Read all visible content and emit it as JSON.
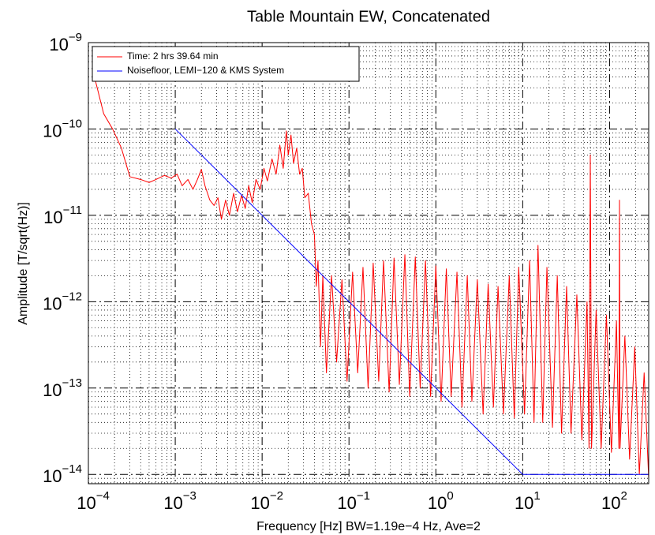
{
  "chart_data": {
    "type": "line",
    "title": "Table Mountain EW, Concatenated",
    "x_label": "Frequency [Hz]  BW=1.19e−4 Hz, Ave=2",
    "y_label": "Amplitude [T/sqrt(Hz)]",
    "x_log": true,
    "y_log": true,
    "grid": true,
    "minor_grid": true,
    "legend": "upper left",
    "xlim": [
      0.0001,
      282
    ],
    "ylim": [
      7.8e-15,
      1e-09
    ],
    "xticks": [
      {
        "value": 0.0001,
        "label": "10^−4"
      },
      {
        "value": 0.001,
        "label": "10^−3"
      },
      {
        "value": 0.01,
        "label": "10^−2"
      },
      {
        "value": 0.1,
        "label": "10^−1"
      },
      {
        "value": 1,
        "label": "10^0"
      },
      {
        "value": 10,
        "label": "10^1"
      },
      {
        "value": 100,
        "label": "10^2"
      }
    ],
    "yticks": [
      {
        "value": 1e-14,
        "label": "10^−14"
      },
      {
        "value": 1e-13,
        "label": "10^−13"
      },
      {
        "value": 1e-12,
        "label": "10^−12"
      },
      {
        "value": 1e-11,
        "label": "10^−11"
      },
      {
        "value": 1e-10,
        "label": "10^−10"
      },
      {
        "value": 1e-09,
        "label": "10^−9"
      }
    ],
    "xminorticks": [
      0.0002,
      0.0003,
      0.0004,
      0.0005,
      0.0006,
      0.0007,
      0.0008,
      0.0009,
      0.002,
      0.003,
      0.004,
      0.005,
      0.006,
      0.007,
      0.008,
      0.009,
      0.02,
      0.03,
      0.04,
      0.05,
      0.06,
      0.07,
      0.08,
      0.09,
      0.2,
      0.3,
      0.4,
      0.5,
      0.6,
      0.7,
      0.8,
      0.9,
      2,
      3,
      4,
      5,
      6,
      7,
      8,
      9,
      20,
      30,
      40,
      50,
      60,
      70,
      80,
      90,
      200
    ],
    "yminorticks": [
      8e-15,
      9e-15,
      2e-14,
      3e-14,
      4e-14,
      5e-14,
      6e-14,
      7e-14,
      8e-14,
      9e-14,
      2e-13,
      3e-13,
      4e-13,
      5e-13,
      6e-13,
      7e-13,
      8e-13,
      9e-13,
      2e-12,
      3e-12,
      4e-12,
      5e-12,
      6e-12,
      7e-12,
      8e-12,
      9e-12,
      2e-11,
      3e-11,
      4e-11,
      5e-11,
      6e-11,
      7e-11,
      8e-11,
      9e-11,
      2e-10,
      3e-10,
      4e-10,
      5e-10,
      6e-10,
      7e-10,
      8e-10,
      9e-10
    ],
    "series": [
      {
        "name": "Time: 2 hrs 39.64 min",
        "color": "#ff0000",
        "x": [
          0.000119,
          0.00015,
          0.00019,
          0.00024,
          0.0003,
          0.0004,
          0.0005,
          0.0006,
          0.00075,
          0.0009,
          0.00105,
          0.0012,
          0.0014,
          0.0016,
          0.0018,
          0.002,
          0.0022,
          0.0025,
          0.0028,
          0.0031,
          0.0034,
          0.0038,
          0.0042,
          0.0047,
          0.0052,
          0.0058,
          0.0064,
          0.007,
          0.0077,
          0.0085,
          0.0095,
          0.0105,
          0.0115,
          0.013,
          0.0145,
          0.016,
          0.0175,
          0.019,
          0.02,
          0.0215,
          0.023,
          0.025,
          0.027,
          0.029,
          0.031,
          0.034,
          0.037,
          0.04,
          0.042,
          0.044,
          0.047,
          0.05,
          0.055,
          0.063,
          0.072,
          0.083,
          0.095,
          0.11,
          0.126,
          0.145,
          0.166,
          0.19,
          0.22,
          0.25,
          0.29,
          0.33,
          0.38,
          0.44,
          0.5,
          0.58,
          0.66,
          0.76,
          0.87,
          1,
          1.15,
          1.32,
          1.5,
          1.75,
          2,
          2.3,
          2.6,
          3,
          3.5,
          4,
          4.6,
          5.2,
          6,
          7,
          8,
          9,
          10.5,
          12,
          13.5,
          15,
          17,
          19,
          22,
          25,
          28,
          32,
          36,
          42,
          48,
          55,
          58,
          60,
          62,
          70,
          80,
          92,
          105,
          120,
          128,
          130,
          132,
          150,
          170,
          195,
          220,
          250,
          282
        ],
        "values": [
          3.8e-10,
          1.5e-10,
          1e-10,
          6e-11,
          2.8e-11,
          2.6e-11,
          2.4e-11,
          2.6e-11,
          2.9e-11,
          2.7e-11,
          3e-11,
          2.2e-11,
          2.6e-11,
          2e-11,
          2.6e-11,
          3.4e-11,
          2.2e-11,
          1.5e-11,
          1.3e-11,
          1.6e-11,
          9e-12,
          1.5e-11,
          1e-11,
          1.8e-11,
          1.1e-11,
          1.7e-11,
          1.2e-11,
          2.2e-11,
          1.4e-11,
          2.6e-11,
          2e-11,
          3.5e-11,
          2.5e-11,
          4.5e-11,
          3e-11,
          6.5e-11,
          3.5e-11,
          9.5e-11,
          5e-11,
          8.5e-11,
          4e-11,
          6e-11,
          3e-11,
          3.5e-11,
          1.6e-11,
          1.8e-11,
          8e-12,
          6e-12,
          1.5e-12,
          3e-12,
          3e-13,
          2e-12,
          1.5e-13,
          2e-12,
          2e-13,
          1.8e-12,
          1.2e-13,
          2.2e-12,
          1.5e-13,
          2.5e-12,
          1e-13,
          2.8e-12,
          1.2e-13,
          3e-12,
          9e-14,
          3.2e-12,
          1.1e-13,
          3.5e-12,
          8e-14,
          3.3e-12,
          1e-13,
          3e-12,
          8e-14,
          2.6e-12,
          7e-14,
          2.4e-12,
          8e-14,
          2.2e-12,
          6e-14,
          2e-12,
          7e-14,
          1.8e-12,
          5e-14,
          1.6e-12,
          6e-14,
          1.5e-12,
          5e-14,
          2e-12,
          4.5e-14,
          2.5e-12,
          5e-14,
          3e-12,
          4e-14,
          4.5e-12,
          4e-14,
          2.5e-12,
          3.5e-14,
          2e-12,
          3e-14,
          1.5e-12,
          3e-14,
          1.2e-12,
          2.5e-14,
          1e-12,
          2e-14,
          5e-11,
          2e-14,
          8e-13,
          2e-14,
          7e-13,
          1.8e-14,
          6e-13,
          2e-14,
          1.5e-11,
          2e-14,
          4e-13,
          1.5e-14,
          3e-13,
          1e-14,
          1.5e-13,
          9e-15
        ]
      },
      {
        "name": "Noisefloor, LEMI−120 & KMS System",
        "color": "#0000ff",
        "x": [
          0.001,
          10,
          282
        ],
        "values": [
          1e-10,
          1e-14,
          1e-14
        ]
      }
    ]
  }
}
